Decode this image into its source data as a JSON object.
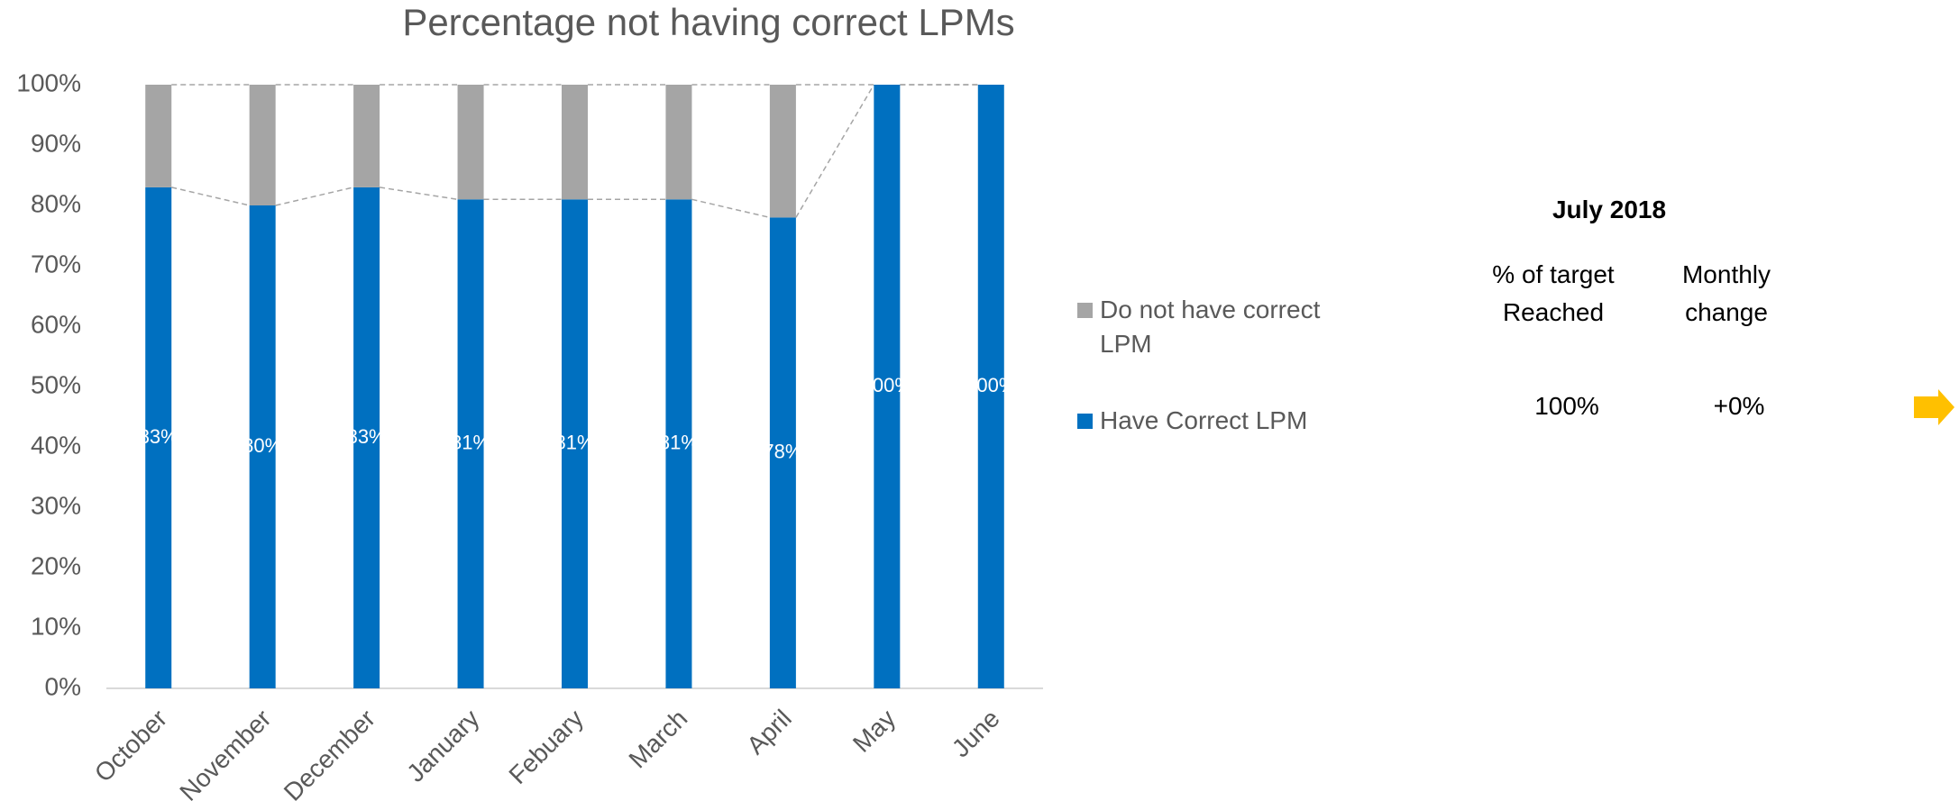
{
  "chart_data": {
    "type": "bar",
    "stacked": true,
    "title": "Percentage not having correct LPMs",
    "categories": [
      "October",
      "November",
      "December",
      "January",
      "Febuary",
      "March",
      "April",
      "May",
      "June"
    ],
    "series": [
      {
        "name": "Have Correct LPM",
        "color": "#0070c0",
        "values": [
          83,
          80,
          83,
          81,
          81,
          81,
          78,
          100,
          100
        ],
        "value_labels": [
          "83%",
          "80%",
          "83%",
          "81%",
          "81%",
          "81%",
          "78%",
          "100%",
          "100%"
        ]
      },
      {
        "name": "Do not have correct LPM",
        "color": "#a5a5a5",
        "values": [
          17,
          20,
          17,
          19,
          19,
          19,
          22,
          0,
          0
        ]
      }
    ],
    "ylim": [
      0,
      100
    ],
    "yticks": [
      {
        "value": 0,
        "label": "0%"
      },
      {
        "value": 10,
        "label": "10%"
      },
      {
        "value": 20,
        "label": "20%"
      },
      {
        "value": 30,
        "label": "30%"
      },
      {
        "value": 40,
        "label": "40%"
      },
      {
        "value": 50,
        "label": "50%"
      },
      {
        "value": 60,
        "label": "60%"
      },
      {
        "value": 70,
        "label": "70%"
      },
      {
        "value": 80,
        "label": "80%"
      },
      {
        "value": 90,
        "label": "90%"
      },
      {
        "value": 100,
        "label": "100%"
      }
    ]
  },
  "summary": {
    "title": "July 2018",
    "col1": [
      "% of target",
      "Reached"
    ],
    "col2": [
      "Monthly",
      "change"
    ],
    "value1": "100%",
    "value2": "+0%"
  }
}
